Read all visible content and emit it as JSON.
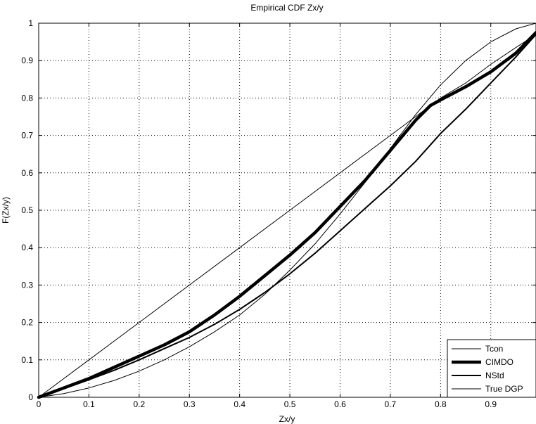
{
  "chart_data": {
    "type": "line",
    "title": "Empirical CDF Zx/y",
    "xlabel": "Zx/y",
    "ylabel": "F(Zx/y)",
    "xlim": [
      0,
      0.99
    ],
    "ylim": [
      0,
      1
    ],
    "grid": true,
    "legend_position": "bottom-right",
    "x_ticks": [
      "0",
      "0.1",
      "0.2",
      "0.3",
      "0.4",
      "0.5",
      "0.6",
      "0.7",
      "0.8",
      "0.9"
    ],
    "y_ticks": [
      "0",
      "0.1",
      "0.2",
      "0.3",
      "0.4",
      "0.5",
      "0.6",
      "0.7",
      "0.8",
      "0.9",
      "1"
    ],
    "series": [
      {
        "name": "Tcon",
        "style": "thin",
        "x": [
          0,
          0.1,
          0.2,
          0.3,
          0.4,
          0.5,
          0.6,
          0.7,
          0.77,
          0.8,
          0.85,
          0.9,
          0.95,
          0.99
        ],
        "y": [
          0,
          0.1,
          0.2,
          0.3,
          0.4,
          0.5,
          0.6,
          0.7,
          0.77,
          0.8,
          0.84,
          0.89,
          0.935,
          0.97
        ]
      },
      {
        "name": "CIMDO",
        "style": "thick",
        "x": [
          0,
          0.05,
          0.1,
          0.15,
          0.2,
          0.25,
          0.3,
          0.35,
          0.4,
          0.45,
          0.5,
          0.55,
          0.6,
          0.65,
          0.7,
          0.75,
          0.78,
          0.8,
          0.85,
          0.9,
          0.95,
          0.99
        ],
        "y": [
          0,
          0.025,
          0.05,
          0.08,
          0.11,
          0.14,
          0.175,
          0.22,
          0.27,
          0.325,
          0.38,
          0.44,
          0.51,
          0.58,
          0.66,
          0.74,
          0.78,
          0.795,
          0.83,
          0.87,
          0.92,
          0.975
        ]
      },
      {
        "name": "NStd",
        "style": "medium",
        "x": [
          0,
          0.05,
          0.1,
          0.15,
          0.2,
          0.25,
          0.3,
          0.35,
          0.4,
          0.45,
          0.5,
          0.55,
          0.6,
          0.65,
          0.7,
          0.75,
          0.8,
          0.85,
          0.9,
          0.95,
          0.99
        ],
        "y": [
          0,
          0.023,
          0.047,
          0.072,
          0.1,
          0.13,
          0.16,
          0.195,
          0.235,
          0.28,
          0.33,
          0.385,
          0.445,
          0.505,
          0.565,
          0.63,
          0.705,
          0.77,
          0.84,
          0.91,
          0.97
        ]
      },
      {
        "name": "True DGP",
        "style": "thin",
        "x": [
          0,
          0.05,
          0.1,
          0.15,
          0.2,
          0.25,
          0.3,
          0.35,
          0.4,
          0.45,
          0.5,
          0.55,
          0.6,
          0.65,
          0.7,
          0.75,
          0.8,
          0.85,
          0.9,
          0.95,
          0.99
        ],
        "y": [
          0,
          0.01,
          0.025,
          0.045,
          0.07,
          0.1,
          0.135,
          0.175,
          0.22,
          0.275,
          0.34,
          0.41,
          0.49,
          0.575,
          0.665,
          0.755,
          0.835,
          0.9,
          0.95,
          0.985,
          1.0
        ]
      }
    ]
  }
}
